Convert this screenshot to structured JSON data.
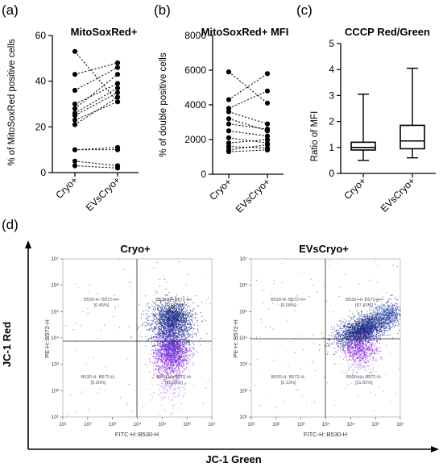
{
  "chart_data": [
    {
      "panel_label": "(a)",
      "type": "scatter",
      "title": "MitoSoxRed+",
      "ylabel": "% of MitoSoxRed positive cells",
      "categories": [
        "Cryo+",
        "EVsCryo+"
      ],
      "ylim": [
        0,
        60
      ],
      "yticks": [
        "0",
        "20",
        "40",
        "60"
      ],
      "paired": true,
      "series": [
        {
          "values": [
            53,
            31
          ]
        },
        {
          "values": [
            43,
            48
          ]
        },
        {
          "values": [
            36,
            46
          ]
        },
        {
          "values": [
            30,
            39
          ]
        },
        {
          "values": [
            28,
            43
          ]
        },
        {
          "values": [
            26,
            37
          ]
        },
        {
          "values": [
            25,
            35
          ]
        },
        {
          "values": [
            23,
            31
          ]
        },
        {
          "values": [
            21,
            33
          ]
        },
        {
          "values": [
            10,
            11
          ]
        },
        {
          "values": [
            10,
            10
          ]
        },
        {
          "values": [
            5,
            3
          ]
        },
        {
          "values": [
            3,
            2
          ]
        }
      ]
    },
    {
      "panel_label": "(b)",
      "type": "scatter",
      "title": "MitoSoxRed+ MFI",
      "ylabel": "% of double positive cells",
      "categories": [
        "Cryo+",
        "EVsCryo+"
      ],
      "ylim": [
        0,
        8000
      ],
      "yticks": [
        "0",
        "2000",
        "4000",
        "6000",
        "8000"
      ],
      "paired": true,
      "series": [
        {
          "values": [
            5900,
            4100
          ]
        },
        {
          "values": [
            4300,
            5800
          ]
        },
        {
          "values": [
            3800,
            4800
          ]
        },
        {
          "values": [
            3600,
            2900
          ]
        },
        {
          "values": [
            3200,
            2500
          ]
        },
        {
          "values": [
            2900,
            2600
          ]
        },
        {
          "values": [
            2500,
            2200
          ]
        },
        {
          "values": [
            2100,
            1800
          ]
        },
        {
          "values": [
            1800,
            2000
          ]
        },
        {
          "values": [
            1600,
            1500
          ]
        },
        {
          "values": [
            1400,
            1700
          ]
        },
        {
          "values": [
            1300,
            1400
          ]
        }
      ]
    },
    {
      "panel_label": "(c)",
      "type": "box",
      "title": "CCCP Red/Green",
      "ylabel": "Ratio of MFI",
      "categories": [
        "Cryo+",
        "EVsCryo+"
      ],
      "ylim": [
        0,
        5
      ],
      "yticks": [
        "0",
        "1",
        "2",
        "3",
        "4",
        "5"
      ],
      "boxes": [
        {
          "min": 0.5,
          "q1": 0.9,
          "median": 1.0,
          "q3": 1.2,
          "max": 3.05
        },
        {
          "min": 0.6,
          "q1": 0.95,
          "median": 1.25,
          "q3": 1.85,
          "max": 4.05
        }
      ]
    },
    {
      "panel_label": "(d)",
      "type": "scatter",
      "subtype": "flow-cytometry-density",
      "xlabel_outer": "JC-1 Green",
      "ylabel_outer": "JC-1 Red",
      "tick_labels": [
        "10¹",
        "10²",
        "10³",
        "10⁴",
        "10⁵",
        "10⁶",
        "10⁷"
      ],
      "plots": [
        {
          "title": "Cryo+",
          "xlabel": "FITC-H::B530-H",
          "ylabel": "PE-H::B572-H",
          "quadrants": [
            {
              "name": "B530-H- B572-H+",
              "pct": "[0.45%]"
            },
            {
              "name": "B530-H+ B572-H+",
              "pct": "[50.47%]"
            },
            {
              "name": "B530-H- B572-H-",
              "pct": "[0.30%]"
            },
            {
              "name": "B530-H+ B572-H-",
              "pct": "[20.06%]"
            }
          ]
        },
        {
          "title": "EVsCryo+",
          "xlabel": "FITC-H::B530-H",
          "ylabel": "PE-H::B572-H",
          "quadrants": [
            {
              "name": "B530-H- B572-H+",
              "pct": "[0.09%]"
            },
            {
              "name": "B530-H+ B572-H+",
              "pct": "[87.41%]"
            },
            {
              "name": "B530-H- B572-H-",
              "pct": "[0.13%]"
            },
            {
              "name": "B530-H+ B572-H-",
              "pct": "[11.81%]"
            }
          ]
        }
      ]
    }
  ],
  "colors": {
    "axis": "#000000",
    "point": "#000000",
    "dash": "#000000",
    "cyto_high": "#2b3d9a",
    "cyto_low": "#8a2be2",
    "cyto_mid": "#5a39c8",
    "cyto_green": "#5fb04b",
    "quad_line": "#222222",
    "small_text": "#555555"
  }
}
